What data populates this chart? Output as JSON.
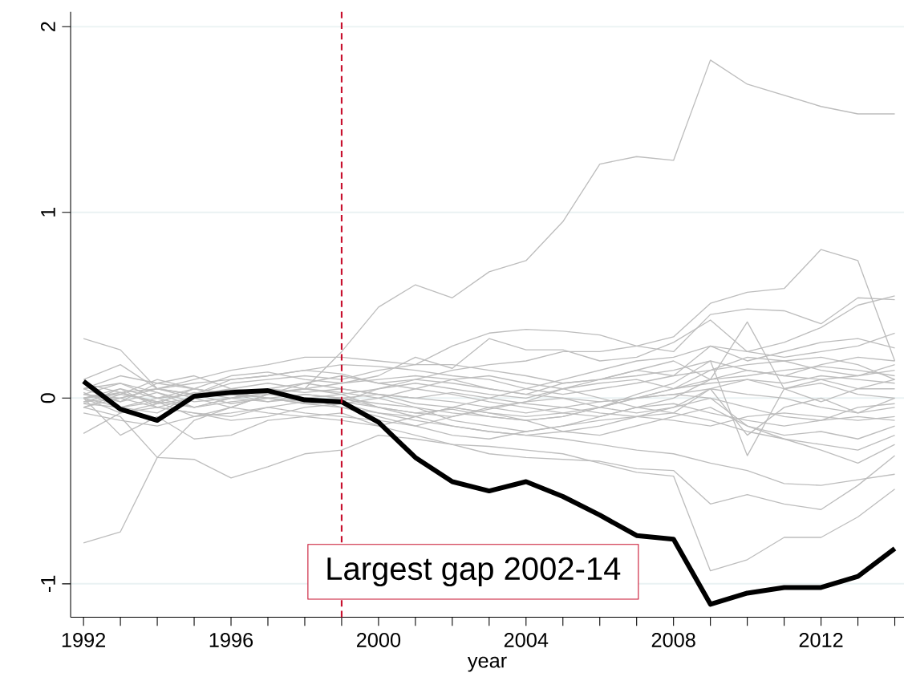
{
  "chart_data": {
    "type": "line",
    "xlabel": "year",
    "x": [
      1992,
      1993,
      1994,
      1995,
      1996,
      1997,
      1998,
      1999,
      2000,
      2001,
      2002,
      2003,
      2004,
      2005,
      2006,
      2007,
      2008,
      2009,
      2010,
      2011,
      2012,
      2013,
      2014
    ],
    "xlim": [
      1991.65,
      2014.25
    ],
    "xticks": [
      1992,
      {
        "value": 1993,
        "label": null
      },
      {
        "value": 1994,
        "label": null
      },
      {
        "value": 1995,
        "label": null
      },
      1996,
      {
        "value": 1997,
        "label": null
      },
      {
        "value": 1998,
        "label": null
      },
      {
        "value": 1999,
        "label": null
      },
      2000,
      {
        "value": 2001,
        "label": null
      },
      {
        "value": 2002,
        "label": null
      },
      {
        "value": 2003,
        "label": null
      },
      2004,
      {
        "value": 2005,
        "label": null
      },
      {
        "value": 2006,
        "label": null
      },
      {
        "value": 2007,
        "label": null
      },
      2008,
      {
        "value": 2009,
        "label": null
      },
      {
        "value": 2010,
        "label": null
      },
      {
        "value": 2011,
        "label": null
      },
      2012,
      {
        "value": 2013,
        "label": null
      },
      {
        "value": 2014,
        "label": null
      }
    ],
    "ylim": [
      -1.18,
      2.08
    ],
    "yticks": [
      -1,
      0,
      1,
      2
    ],
    "grid": "y",
    "ref_lines": [
      {
        "axis": "x",
        "value": 1999,
        "color": "#c8102e",
        "line_style": "dashed"
      }
    ],
    "annotations": [
      "Largest gap 2002-14"
    ],
    "series": [
      {
        "color": "#bdbdbd",
        "values": [
          0.0,
          0.03,
          -0.02,
          -0.05,
          0.0,
          0.02,
          0.05,
          0.25,
          0.49,
          0.61,
          0.54,
          0.68,
          0.74,
          0.95,
          1.26,
          1.3,
          1.28,
          1.82,
          1.69,
          1.63,
          1.57,
          1.53,
          1.53
        ]
      },
      {
        "color": "#bdbdbd",
        "values": [
          -0.78,
          -0.72,
          -0.32,
          -0.12,
          -0.05,
          0.02,
          0.08,
          0.05,
          0.02,
          -0.03,
          -0.05,
          -0.08,
          -0.1,
          -0.08,
          -0.05,
          0.0,
          0.05,
          0.1,
          0.15,
          0.12,
          0.18,
          0.22,
          0.2
        ]
      },
      {
        "color": "#bdbdbd",
        "values": [
          0.32,
          0.26,
          0.05,
          0.02,
          0.1,
          0.12,
          0.15,
          0.13,
          0.08,
          0.1,
          0.15,
          0.18,
          0.2,
          0.25,
          0.25,
          0.28,
          0.33,
          0.51,
          0.57,
          0.59,
          0.8,
          0.74,
          0.2
        ]
      },
      {
        "color": "#bdbdbd",
        "values": [
          0.0,
          -0.2,
          -0.1,
          -0.22,
          -0.2,
          -0.12,
          -0.1,
          -0.08,
          -0.15,
          -0.2,
          -0.25,
          -0.3,
          -0.32,
          -0.33,
          -0.34,
          -0.38,
          -0.39,
          -0.57,
          -0.52,
          -0.57,
          -0.6,
          -0.47,
          -0.31
        ]
      },
      {
        "color": "#bdbdbd",
        "values": [
          -0.05,
          -0.1,
          -0.32,
          -0.33,
          -0.43,
          -0.37,
          -0.3,
          -0.28,
          -0.2,
          -0.22,
          -0.25,
          -0.26,
          -0.28,
          -0.3,
          -0.35,
          -0.4,
          -0.42,
          -0.93,
          -0.87,
          -0.75,
          -0.75,
          -0.64,
          -0.49
        ]
      },
      {
        "color": "#bdbdbd",
        "values": [
          -0.19,
          -0.08,
          -0.05,
          -0.08,
          -0.1,
          -0.05,
          -0.02,
          -0.03,
          -0.08,
          -0.12,
          -0.15,
          -0.18,
          -0.2,
          -0.22,
          -0.25,
          -0.28,
          -0.3,
          -0.35,
          -0.39,
          -0.46,
          -0.47,
          -0.44,
          -0.41
        ]
      },
      {
        "color": "#bdbdbd",
        "values": [
          0.1,
          0.18,
          0.05,
          0.1,
          0.15,
          0.18,
          0.22,
          0.22,
          0.2,
          0.18,
          0.28,
          0.35,
          0.37,
          0.36,
          0.34,
          0.28,
          0.25,
          0.45,
          0.48,
          0.47,
          0.4,
          0.54,
          0.53
        ]
      },
      {
        "color": "#bdbdbd",
        "values": [
          0.05,
          0.12,
          0.08,
          0.05,
          0.12,
          0.14,
          0.1,
          0.08,
          0.12,
          0.22,
          0.16,
          0.32,
          0.26,
          0.26,
          0.2,
          0.22,
          0.3,
          0.42,
          0.25,
          0.3,
          0.38,
          0.5,
          0.55
        ]
      },
      {
        "color": "#bdbdbd",
        "values": [
          0.0,
          0.05,
          -0.05,
          0.0,
          0.05,
          0.02,
          0.0,
          -0.02,
          0.05,
          0.1,
          0.08,
          0.05,
          0.02,
          0.08,
          0.1,
          0.15,
          0.2,
          0.1,
          0.41,
          0.05,
          -0.02,
          0.05,
          0.1
        ]
      },
      {
        "color": "#bdbdbd",
        "values": [
          0.02,
          -0.02,
          0.03,
          -0.05,
          0.0,
          0.03,
          0.05,
          0.02,
          -0.05,
          -0.08,
          -0.1,
          -0.06,
          -0.02,
          0.05,
          0.1,
          0.12,
          0.15,
          0.2,
          -0.31,
          0.05,
          0.1,
          0.12,
          0.18
        ]
      },
      {
        "color": "#bdbdbd",
        "values": [
          -0.02,
          0.0,
          0.05,
          0.02,
          -0.03,
          0.0,
          0.02,
          0.0,
          -0.05,
          -0.1,
          -0.05,
          0.0,
          0.05,
          0.1,
          0.15,
          0.2,
          0.22,
          0.28,
          0.2,
          0.25,
          0.3,
          0.32,
          0.27
        ]
      },
      {
        "color": "#bdbdbd",
        "values": [
          0.05,
          0.08,
          0.0,
          0.02,
          0.08,
          0.1,
          0.12,
          0.1,
          0.15,
          0.18,
          0.18,
          0.15,
          0.12,
          0.08,
          0.1,
          0.15,
          0.12,
          0.28,
          0.25,
          0.22,
          0.25,
          0.28,
          0.35
        ]
      },
      {
        "color": "#bdbdbd",
        "values": [
          -0.05,
          0.02,
          0.1,
          0.05,
          0.02,
          0.05,
          0.03,
          0.05,
          0.02,
          0.0,
          -0.02,
          -0.05,
          -0.08,
          -0.05,
          -0.02,
          0.0,
          0.05,
          0.15,
          0.18,
          0.2,
          0.22,
          0.18,
          0.1
        ]
      },
      {
        "color": "#bdbdbd",
        "values": [
          0.03,
          -0.05,
          -0.08,
          0.02,
          0.05,
          0.08,
          0.05,
          0.03,
          0.0,
          -0.05,
          -0.12,
          -0.15,
          -0.18,
          -0.15,
          -0.1,
          -0.05,
          0.0,
          0.1,
          0.12,
          0.15,
          0.17,
          0.15,
          0.12
        ]
      },
      {
        "color": "#bdbdbd",
        "values": [
          -0.03,
          0.05,
          0.0,
          -0.05,
          -0.02,
          0.0,
          -0.03,
          -0.05,
          -0.08,
          -0.1,
          -0.15,
          -0.18,
          -0.2,
          -0.18,
          -0.15,
          -0.1,
          -0.05,
          0.05,
          0.1,
          0.08,
          0.12,
          0.1,
          0.08
        ]
      },
      {
        "color": "#bdbdbd",
        "values": [
          0.0,
          -0.08,
          -0.03,
          0.05,
          0.02,
          -0.02,
          0.0,
          -0.05,
          -0.1,
          -0.15,
          -0.2,
          -0.22,
          -0.18,
          -0.15,
          -0.12,
          -0.1,
          -0.08,
          0.05,
          -0.2,
          -0.05,
          0.0,
          -0.08,
          0.0
        ]
      },
      {
        "color": "#bdbdbd",
        "values": [
          0.08,
          0.03,
          -0.03,
          0.0,
          0.03,
          0.0,
          -0.03,
          -0.02,
          -0.05,
          -0.08,
          -0.06,
          -0.1,
          -0.12,
          -0.1,
          -0.05,
          0.02,
          0.08,
          0.2,
          0.15,
          0.12,
          0.1,
          0.05,
          0.05
        ]
      },
      {
        "color": "#bdbdbd",
        "values": [
          -0.08,
          -0.12,
          -0.15,
          -0.1,
          -0.05,
          -0.08,
          -0.1,
          -0.12,
          -0.15,
          -0.1,
          -0.05,
          -0.08,
          -0.12,
          -0.18,
          -0.2,
          -0.15,
          -0.1,
          -0.05,
          -0.15,
          -0.2,
          -0.18,
          -0.22,
          -0.15
        ]
      },
      {
        "color": "#bdbdbd",
        "values": [
          0.02,
          0.0,
          -0.05,
          -0.08,
          -0.12,
          -0.1,
          -0.05,
          -0.03,
          0.0,
          0.05,
          0.1,
          0.12,
          0.08,
          0.05,
          0.0,
          -0.05,
          -0.08,
          -0.12,
          -0.18,
          -0.22,
          -0.25,
          -0.28,
          -0.2
        ]
      },
      {
        "color": "#bdbdbd",
        "values": [
          -0.03,
          -0.05,
          -0.02,
          -0.1,
          -0.08,
          -0.05,
          -0.08,
          -0.1,
          -0.12,
          -0.15,
          -0.1,
          -0.05,
          -0.02,
          0.0,
          -0.05,
          -0.08,
          -0.05,
          0.0,
          -0.15,
          -0.22,
          -0.28,
          -0.35,
          -0.25
        ]
      },
      {
        "color": "#bdbdbd",
        "values": [
          0.05,
          -0.02,
          0.08,
          0.12,
          0.05,
          0.03,
          0.0,
          0.02,
          0.05,
          0.08,
          0.05,
          0.02,
          0.0,
          0.05,
          0.08,
          0.1,
          0.05,
          0.08,
          0.1,
          0.05,
          0.08,
          0.02,
          0.0
        ]
      },
      {
        "color": "#bdbdbd",
        "values": [
          -0.02,
          0.03,
          0.05,
          0.0,
          -0.05,
          0.02,
          0.05,
          0.08,
          0.1,
          0.12,
          0.1,
          0.05,
          0.02,
          0.0,
          -0.02,
          0.0,
          0.02,
          0.05,
          0.02,
          0.0,
          -0.05,
          -0.08,
          -0.05
        ]
      },
      {
        "color": "#bdbdbd",
        "values": [
          0.0,
          0.02,
          -0.02,
          0.03,
          0.0,
          -0.02,
          0.02,
          0.0,
          0.02,
          0.0,
          0.03,
          0.0,
          -0.03,
          -0.05,
          -0.08,
          -0.1,
          -0.12,
          -0.15,
          -0.1,
          -0.08,
          -0.1,
          -0.12,
          -0.1
        ]
      },
      {
        "color": "#bdbdbd",
        "values": [
          0.02,
          0.08,
          0.03,
          -0.02,
          0.0,
          0.05,
          0.08,
          0.12,
          0.08,
          0.05,
          0.02,
          -0.02,
          -0.05,
          -0.08,
          -0.1,
          -0.05,
          -0.03,
          -0.08,
          -0.12,
          -0.15,
          -0.12,
          -0.05,
          -0.03
        ]
      },
      {
        "color": "#bdbdbd",
        "values": [
          -0.05,
          0.0,
          0.05,
          0.08,
          0.1,
          0.12,
          0.15,
          0.18,
          0.17,
          0.15,
          0.12,
          0.1,
          0.05,
          0.02,
          0.05,
          0.08,
          0.12,
          0.15,
          0.22,
          0.2,
          0.15,
          0.12,
          0.15
        ]
      },
      {
        "color": "#bdbdbd",
        "values": [
          0.0,
          -0.05,
          0.0,
          0.05,
          0.02,
          0.0,
          -0.02,
          0.0,
          -0.03,
          -0.05,
          -0.08,
          -0.1,
          -0.12,
          -0.1,
          -0.05,
          0.0,
          0.02,
          0.0,
          -0.05,
          -0.1,
          -0.12,
          -0.1,
          -0.12
        ]
      },
      {
        "color": "#000000",
        "values": [
          0.09,
          -0.06,
          -0.12,
          0.01,
          0.03,
          0.04,
          -0.01,
          -0.02,
          -0.13,
          -0.32,
          -0.45,
          -0.5,
          -0.45,
          -0.53,
          -0.63,
          -0.74,
          -0.76,
          -1.11,
          -1.05,
          -1.02,
          -1.02,
          -0.96,
          -0.81
        ]
      }
    ]
  }
}
